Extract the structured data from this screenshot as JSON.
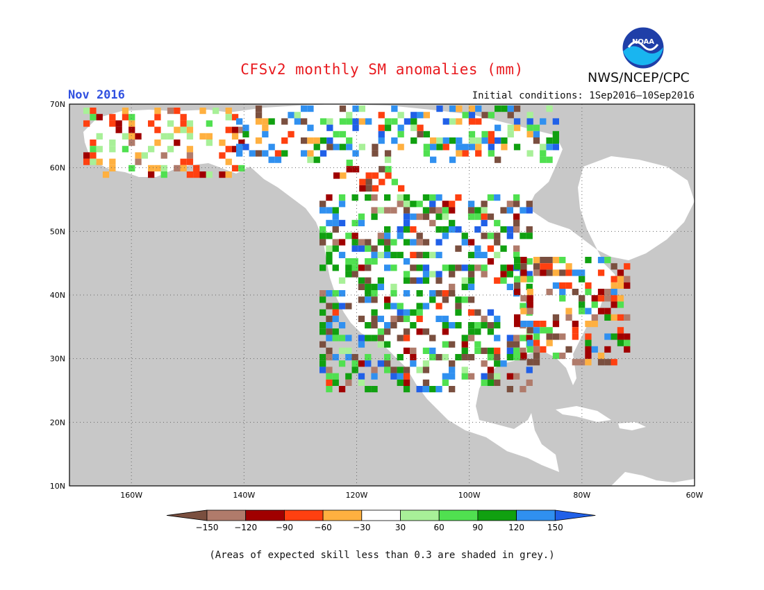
{
  "title": "CFSv2 monthly SM anomalies (mm)",
  "period": "Nov 2016",
  "initial_conditions": "Initial conditions: 1Sep2016—10Sep2016",
  "agency": "NWS/NCEP/CPC",
  "logo_text": "NOAA",
  "footnote": "(Areas of expected skill less than 0.3 are shaded in grey.)",
  "map": {
    "lat_ticks": [
      "70N",
      "60N",
      "50N",
      "40N",
      "30N",
      "20N",
      "10N"
    ],
    "lon_ticks": [
      "160W",
      "140W",
      "120W",
      "100W",
      "80W",
      "60W"
    ],
    "lat_range": [
      10,
      70
    ],
    "lon_range": [
      -171,
      -60
    ],
    "grey_color": "#c8c8c8",
    "land_color": "#ffffff"
  },
  "legend": {
    "labels": [
      "−150",
      "−120",
      "−90",
      "−60",
      "−30",
      "30",
      "60",
      "90",
      "120",
      "150"
    ],
    "colors": [
      "#7a4f3f",
      "#b07b6b",
      "#a00000",
      "#ff4010",
      "#ffb040",
      "#ffffff",
      "#a8f098",
      "#50e050",
      "#10a010",
      "#3090f0",
      "#2060e8"
    ]
  }
}
